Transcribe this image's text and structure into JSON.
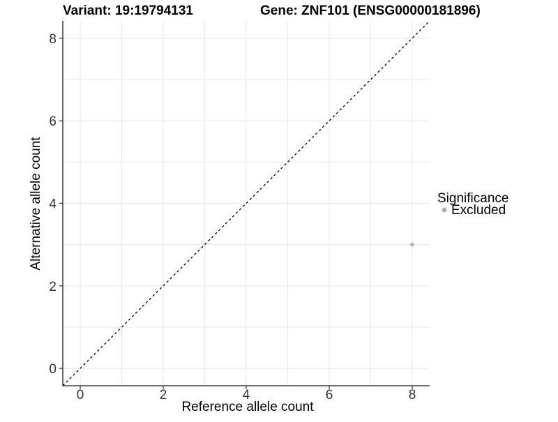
{
  "chart_data": {
    "type": "scatter",
    "titles": {
      "left": "Variant: 19:19794131",
      "right": "Gene: ZNF101 (ENSG00000181896)"
    },
    "xlabel": "Reference allele count",
    "ylabel": "Alternative allele count",
    "xlim": [
      -0.42,
      8.42
    ],
    "ylim": [
      -0.42,
      8.42
    ],
    "axis_ticks": [
      0,
      2,
      4,
      6,
      8
    ],
    "gridline_values": [
      0,
      1,
      2,
      3,
      4,
      5,
      6,
      7,
      8
    ],
    "identity_line": {
      "style": "dashed",
      "color": "#000000",
      "from": [
        -0.42,
        -0.42
      ],
      "to": [
        8.42,
        8.42
      ]
    },
    "series": [
      {
        "name": "Excluded",
        "color": "#b3b3b3",
        "points": [
          [
            8,
            3
          ]
        ]
      }
    ],
    "legend": {
      "title": "Significance",
      "position": "right",
      "entries": [
        {
          "label": "Excluded",
          "color": "#ababab"
        }
      ]
    },
    "colors": {
      "background": "#ffffff",
      "grid": "#e8e8e8",
      "axis_line": "#404040",
      "tick_mark": "#333333",
      "tick_label": "#333333"
    }
  }
}
